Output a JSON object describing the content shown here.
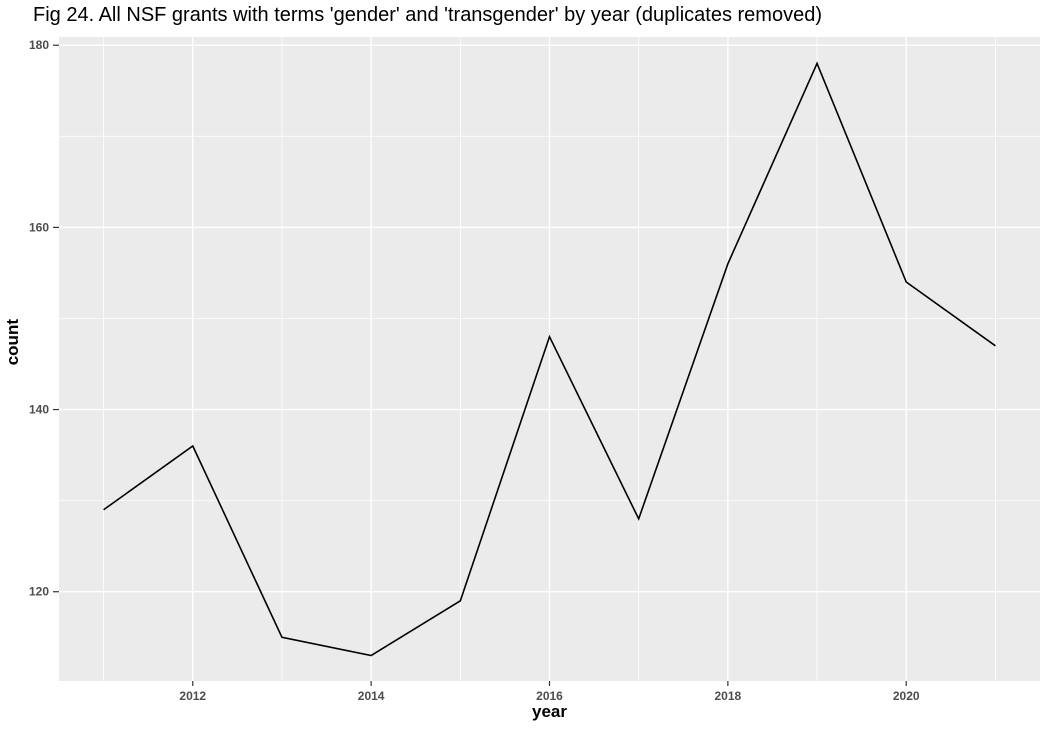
{
  "chart_data": {
    "type": "line",
    "title": "Fig 24. All NSF grants with terms 'gender' and 'transgender' by year (duplicates removed)",
    "xlabel": "year",
    "ylabel": "count",
    "x": [
      2011,
      2012,
      2013,
      2014,
      2015,
      2016,
      2017,
      2018,
      2019,
      2020,
      2021
    ],
    "values": [
      129,
      136,
      115,
      113,
      119,
      148,
      128,
      156,
      178,
      154,
      147
    ],
    "xlim": [
      2010.5,
      2021.5
    ],
    "ylim": [
      110.2,
      180.9
    ],
    "x_major_ticks": [
      2012,
      2014,
      2016,
      2018,
      2020
    ],
    "x_minor_ticks": [
      2011,
      2013,
      2015,
      2017,
      2019,
      2021
    ],
    "y_major_ticks": [
      120,
      140,
      160,
      180
    ],
    "y_minor_ticks": [
      110,
      130,
      150,
      170
    ],
    "grid": "on",
    "legend": "none",
    "colors": {
      "panel_background": "#EBEBEB",
      "grid": "#FFFFFF",
      "line": "#000000",
      "tick_label": "#4D4D4D",
      "tick_mark": "#333333",
      "axis_title": "#000000",
      "title": "#000000"
    }
  }
}
